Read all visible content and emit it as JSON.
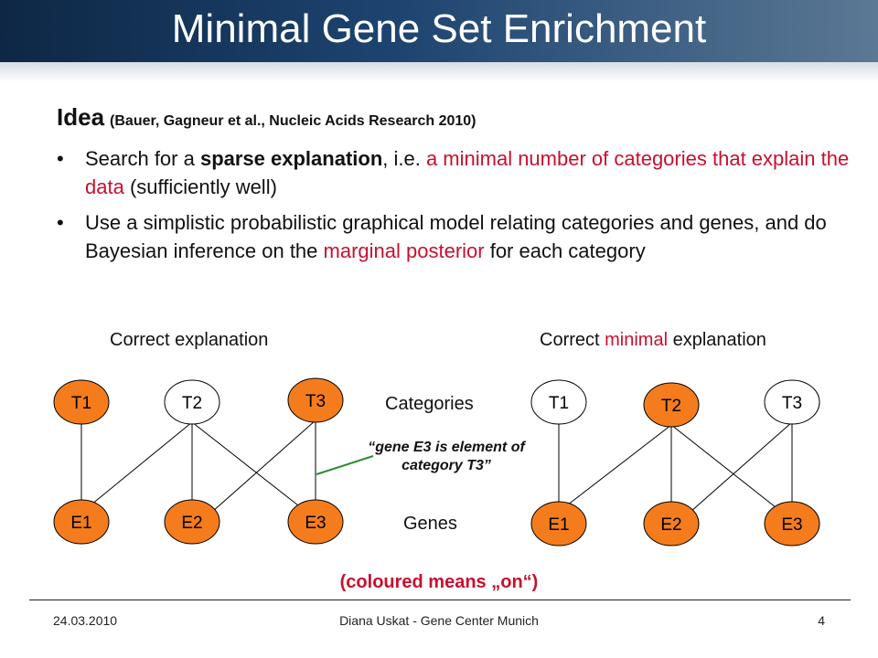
{
  "title": "Minimal Gene Set Enrichment",
  "idea": {
    "heading": "Idea",
    "reference": "(Bauer, Gagneur et al., Nucleic Acids Research 2010)"
  },
  "bullets": [
    {
      "b1_a": "Search for a ",
      "b1_bold": "sparse explanation",
      "b1_b": ", i.e. ",
      "b1_red": "a minimal number of categories that explain the data",
      "b1_c": " (sufficiently well)"
    },
    {
      "b2_a": "Use a simplistic probabilistic graphical model relating categories and genes, and do Bayesian inference on the ",
      "b2_red": "marginal posterior",
      "b2_b": " for each category"
    }
  ],
  "bullet_symbol": "•",
  "diagram": {
    "left_title": "Correct explanation",
    "right_title_a": "Correct ",
    "right_title_red": "minimal",
    "right_title_b": " explanation",
    "categories_label": "Categories",
    "genes_label": "Genes",
    "annotation": "“gene E3 is element of category T3”",
    "legend": "(coloured means „on“)",
    "colors": {
      "on": "#f47c1d",
      "off": "#ffffff",
      "stroke": "#000000",
      "annotation_line": "#2e8b2e"
    },
    "left": {
      "categories": [
        {
          "label": "T1",
          "on": true
        },
        {
          "label": "T2",
          "on": false
        },
        {
          "label": "T3",
          "on": true
        }
      ],
      "genes": [
        {
          "label": "E1",
          "on": true
        },
        {
          "label": "E2",
          "on": true
        },
        {
          "label": "E3",
          "on": true
        }
      ]
    },
    "right": {
      "categories": [
        {
          "label": "T1",
          "on": false
        },
        {
          "label": "T2",
          "on": true
        },
        {
          "label": "T3",
          "on": false
        }
      ],
      "genes": [
        {
          "label": "E1",
          "on": true
        },
        {
          "label": "E2",
          "on": true
        },
        {
          "label": "E3",
          "on": true
        }
      ]
    }
  },
  "footer": {
    "date": "24.03.2010",
    "author": "Diana Uskat - Gene Center Munich",
    "page": "4"
  }
}
